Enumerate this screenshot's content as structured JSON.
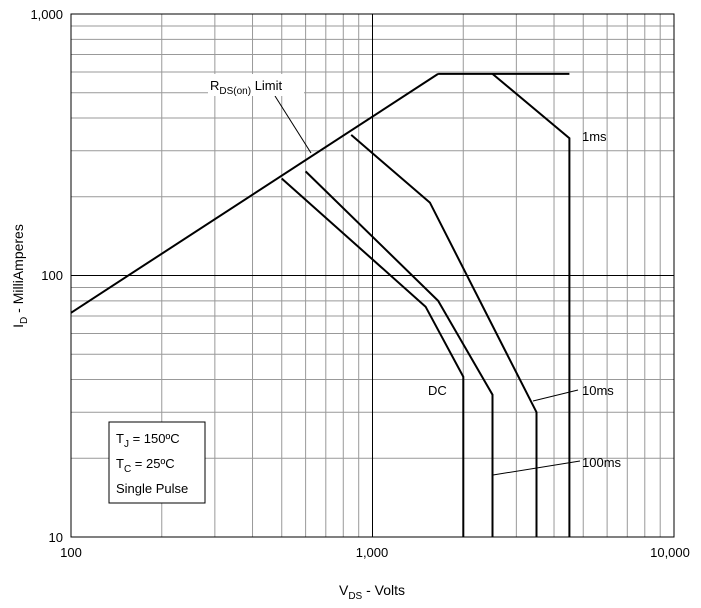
{
  "chart_data": {
    "type": "line",
    "title": "",
    "x_axis": {
      "label_main": "V",
      "label_sub": "DS",
      "label_rest": " - Volts",
      "scale": "log",
      "range": [
        100,
        10000
      ],
      "tick_labels": [
        "100",
        "1,000",
        "10,000"
      ],
      "tick_values": [
        100,
        1000,
        10000
      ]
    },
    "y_axis": {
      "label_main": "I",
      "label_sub": "D",
      "label_rest": " - MilliAmperes",
      "scale": "log",
      "range": [
        10,
        1000
      ],
      "tick_labels": [
        "10",
        "100",
        "1,000"
      ],
      "tick_values": [
        10,
        100,
        1000
      ]
    },
    "grid": true,
    "series": [
      {
        "name": "RDS(on) Limit",
        "points": [
          [
            100,
            72
          ],
          [
            1650,
            590
          ]
        ]
      },
      {
        "points": [
          [
            1650,
            590
          ],
          [
            4500,
            590
          ]
        ]
      },
      {
        "name": "1ms",
        "points": [
          [
            2500,
            590
          ],
          [
            4500,
            335
          ],
          [
            4500,
            10
          ]
        ]
      },
      {
        "name": "10ms",
        "points": [
          [
            850,
            345
          ],
          [
            1550,
            190
          ],
          [
            3500,
            30
          ],
          [
            3500,
            10
          ]
        ]
      },
      {
        "name": "100ms",
        "points": [
          [
            600,
            250
          ],
          [
            1650,
            80
          ],
          [
            2500,
            35
          ],
          [
            2500,
            10
          ]
        ]
      },
      {
        "name": "DC",
        "points": [
          [
            500,
            235
          ],
          [
            1500,
            76
          ],
          [
            2000,
            41
          ],
          [
            2000,
            10
          ]
        ]
      }
    ],
    "annotations": {
      "rds_main": "R",
      "rds_sub": "DS(on)",
      "rds_rest": " Limit",
      "ms1": "1ms",
      "ms10": "10ms",
      "ms100": "100ms",
      "dc": "DC"
    },
    "conditions": {
      "tj_main": "T",
      "tj_sub": "J",
      "tj_rest": " = 150ºC",
      "tc_main": "T",
      "tc_sub": "C",
      "tc_rest": " = 25ºC",
      "pulse": "Single Pulse"
    }
  }
}
